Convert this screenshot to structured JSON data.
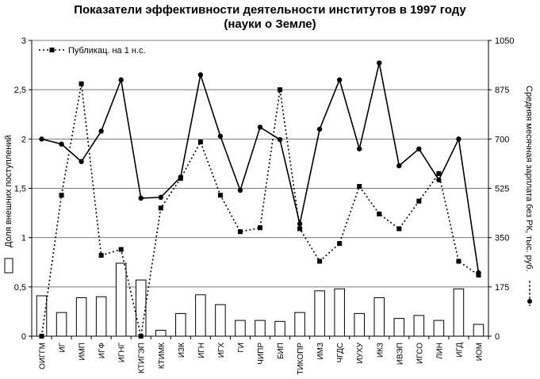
{
  "chart_data": {
    "type": "bar+line",
    "title": "Показатели эффективности деятельности институтов в 1997 году",
    "subtitle": "(науки о Земле)",
    "categories": [
      "ОИГГМ",
      "ИГ",
      "ИМП",
      "ИГФ",
      "ИГНГ",
      "КТИГЭП",
      "КТИМК",
      "ИЗК",
      "ИГН",
      "ИГХ",
      "ГИ",
      "ЧИПР",
      "БИП",
      "ТИКОПР",
      "ИМЗ",
      "ЧГДС",
      "ИУХУ",
      "ИКЗ",
      "ИВЭП",
      "ИГСО",
      "ЛИН",
      "ИГД",
      "ИОМ"
    ],
    "left_axis": {
      "label": "Доля внешних поступлений",
      "ylim": [
        0,
        3
      ],
      "ticks": [
        "0",
        "0,5",
        "1",
        "1,5",
        "2",
        "2,5",
        "3"
      ]
    },
    "right_axis": {
      "label": "Средняя месячная зарплата без РК, тыс. руб.",
      "ylim": [
        0,
        1050
      ],
      "ticks": [
        "0",
        "175",
        "350",
        "525",
        "700",
        "875",
        "1050"
      ]
    },
    "grid": true,
    "legend": {
      "position": "top-left",
      "entries": [
        "Публикац. на 1 н.с."
      ]
    },
    "series": [
      {
        "name": "Доля внешних поступлений",
        "kind": "bar",
        "axis": "left",
        "values": [
          0.41,
          0.24,
          0.39,
          0.4,
          0.74,
          0.57,
          0.06,
          0.23,
          0.42,
          0.32,
          0.16,
          0.16,
          0.15,
          0.24,
          0.46,
          0.48,
          0.23,
          0.39,
          0.18,
          0.21,
          0.16,
          0.48,
          0.12
        ]
      },
      {
        "name": "Публикац. на 1 н.с.",
        "kind": "line",
        "axis": "left",
        "style": "dotted",
        "marker": "square",
        "values": [
          0.0,
          1.43,
          2.56,
          0.82,
          0.88,
          0.0,
          1.3,
          1.6,
          1.97,
          1.43,
          1.06,
          1.1,
          2.5,
          1.09,
          0.76,
          0.94,
          1.52,
          1.24,
          1.09,
          1.37,
          1.65,
          0.76,
          0.62
        ]
      },
      {
        "name": "Средняя месячная зарплата без РК, тыс. руб.",
        "kind": "line",
        "axis": "right",
        "style": "solid",
        "marker": "circle",
        "values": [
          700,
          682,
          620,
          728,
          910,
          490,
          493,
          565,
          928,
          710,
          518,
          742,
          698,
          399,
          735,
          910,
          665,
          970,
          605,
          665,
          555,
          700,
          225
        ]
      }
    ]
  }
}
